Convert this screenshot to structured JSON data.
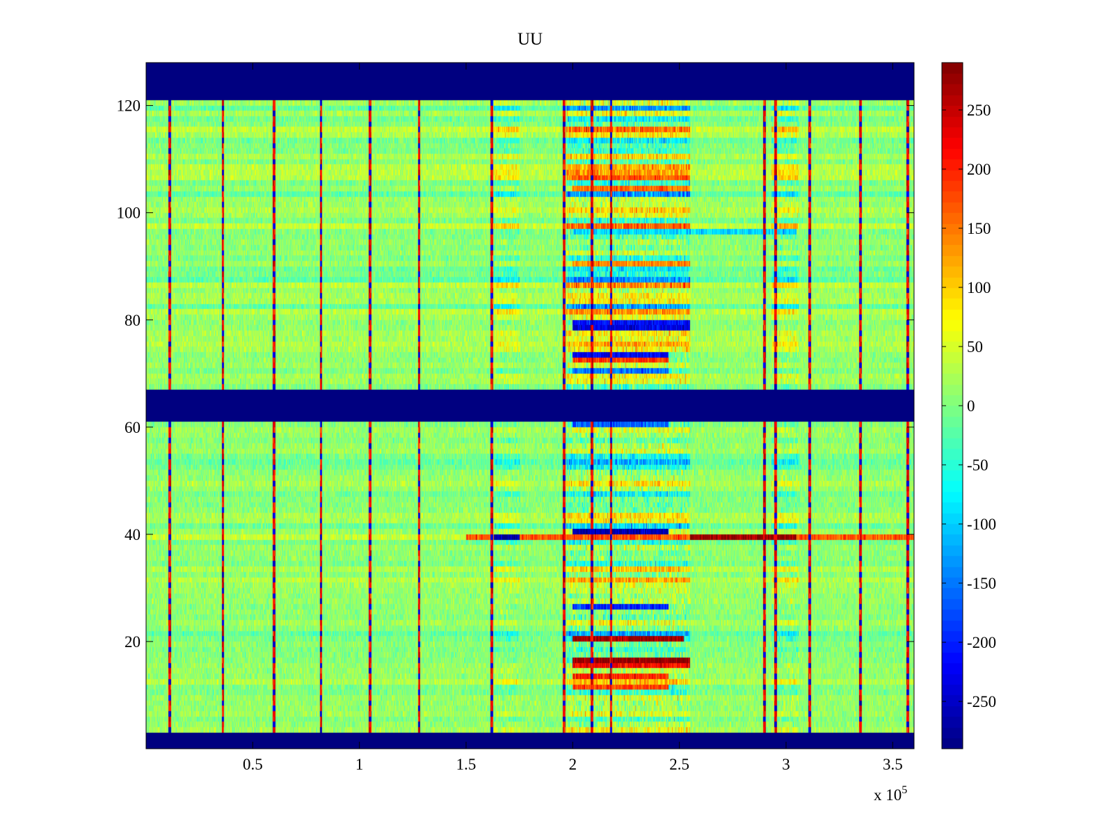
{
  "chart_data": {
    "type": "heatmap",
    "title": "UU",
    "xlabel": "",
    "ylabel": "",
    "x_exponent_label": "x 10",
    "x_exponent_power": "5",
    "xlim": [
      0,
      360000
    ],
    "ylim": [
      0,
      128
    ],
    "x_ticks": [
      50000,
      100000,
      150000,
      200000,
      250000,
      300000,
      350000
    ],
    "x_tick_labels": [
      "0.5",
      "1",
      "1.5",
      "2",
      "2.5",
      "3",
      "3.5"
    ],
    "y_ticks": [
      20,
      40,
      60,
      80,
      100,
      120
    ],
    "y_tick_labels": [
      "20",
      "40",
      "60",
      "80",
      "100",
      "120"
    ],
    "clim": [
      -290,
      290
    ],
    "colormap": "jet",
    "colorbar": {
      "ticks": [
        -250,
        -200,
        -150,
        -100,
        -50,
        0,
        50,
        100,
        150,
        200,
        250
      ],
      "tick_labels": [
        "-250",
        "-200",
        "-150",
        "-100",
        "-50",
        "0",
        "50",
        "100",
        "150",
        "200",
        "250"
      ]
    },
    "grid": false,
    "masked_row_bands": [
      [
        0,
        3
      ],
      [
        61,
        67
      ],
      [
        121,
        128
      ]
    ],
    "masked_value": -290,
    "background_mean": 10,
    "vertical_stripes_x": [
      11000,
      36000,
      60000,
      82000,
      105000,
      128000,
      162000,
      196000,
      209000,
      218000,
      290000,
      295000,
      311000,
      335000,
      357000
    ],
    "active_regions": [
      {
        "x_range": [
          163000,
          175000
        ],
        "intensity": 0.5
      },
      {
        "x_range": [
          197000,
          255000
        ],
        "intensity": 1.0
      },
      {
        "x_range": [
          293000,
          306000
        ],
        "intensity": 0.6
      }
    ],
    "row_features": [
      {
        "row": 39,
        "x_range": [
          150000,
          360000
        ],
        "value": 170
      },
      {
        "row": 39,
        "x_range": [
          163000,
          175000
        ],
        "value": -270
      },
      {
        "row": 39,
        "x_range": [
          255000,
          305000
        ],
        "value": 280
      },
      {
        "row": 40,
        "x_range": [
          200000,
          245000
        ],
        "value": -260
      },
      {
        "row": 20,
        "x_range": [
          200000,
          252000
        ],
        "value": 270
      },
      {
        "row": 16,
        "x_range": [
          200000,
          255000
        ],
        "value": 280
      },
      {
        "row": 15,
        "x_range": [
          200000,
          255000
        ],
        "value": 220
      },
      {
        "row": 13,
        "x_range": [
          200000,
          245000
        ],
        "value": 200
      },
      {
        "row": 11,
        "x_range": [
          200000,
          245000
        ],
        "value": 180
      },
      {
        "row": 26,
        "x_range": [
          200000,
          245000
        ],
        "value": -200
      },
      {
        "row": 60,
        "x_range": [
          200000,
          245000
        ],
        "value": -160
      },
      {
        "row": 78,
        "x_range": [
          200000,
          255000
        ],
        "value": -230
      },
      {
        "row": 79,
        "x_range": [
          200000,
          255000
        ],
        "value": -210
      },
      {
        "row": 73,
        "x_range": [
          200000,
          245000
        ],
        "value": -220
      },
      {
        "row": 72,
        "x_range": [
          200000,
          245000
        ],
        "value": 190
      },
      {
        "row": 70,
        "x_range": [
          200000,
          245000
        ],
        "value": -150
      },
      {
        "row": 106,
        "x_range": [
          200000,
          255000
        ],
        "value": 170
      },
      {
        "row": 104,
        "x_range": [
          200000,
          255000
        ],
        "value": 150
      },
      {
        "row": 90,
        "x_range": [
          200000,
          255000
        ],
        "value": 140
      },
      {
        "row": 96,
        "x_range": [
          200000,
          305000
        ],
        "value": -90
      }
    ]
  }
}
